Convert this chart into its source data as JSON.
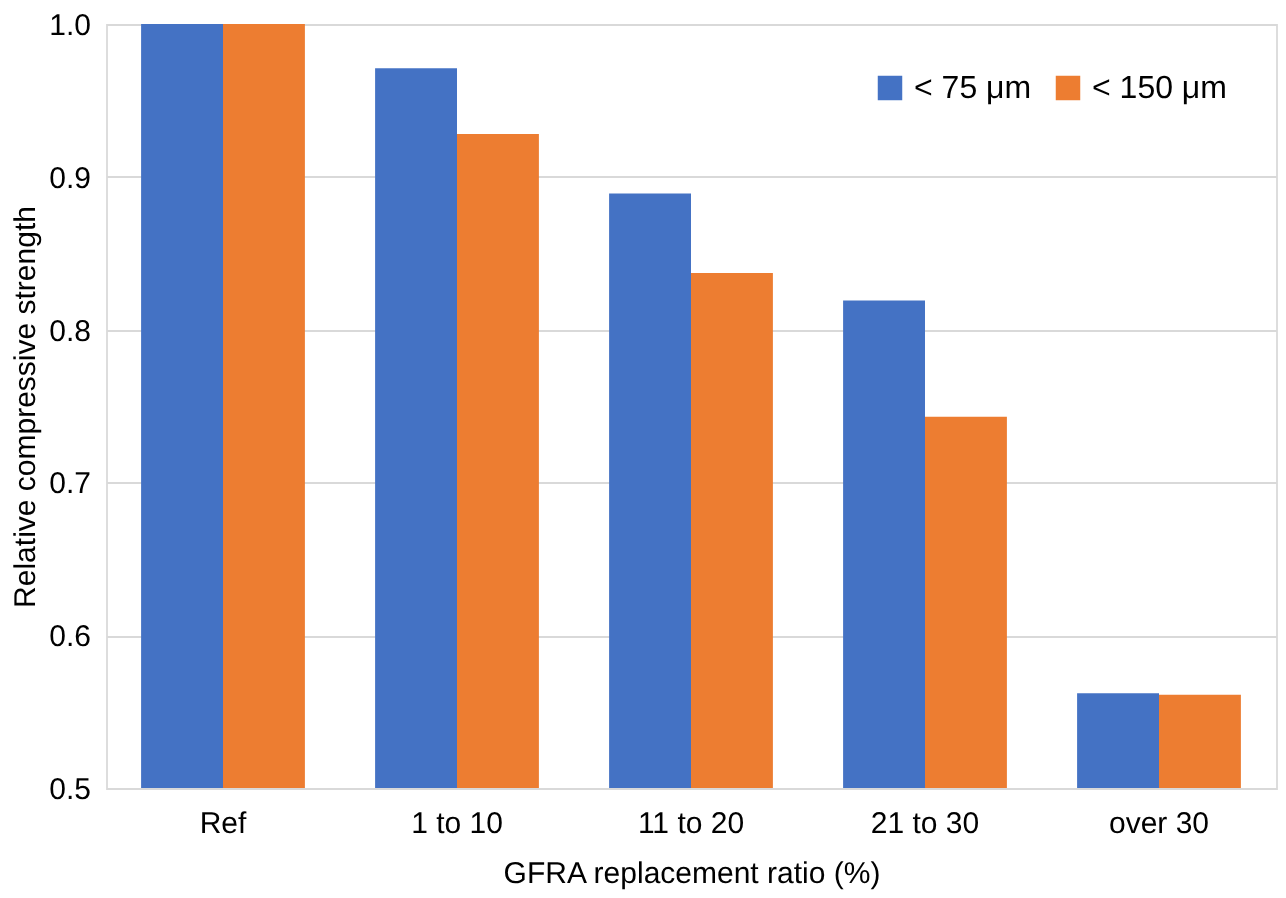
{
  "chart_data": {
    "type": "bar",
    "categories": [
      "Ref",
      "1 to 10",
      "11 to 20",
      "21 to 30",
      "over 30"
    ],
    "xlabel": "GFRA replacement ratio (%)",
    "ylabel": "Relative compressive strength",
    "series": [
      {
        "name": "< 75 μm",
        "color": "#4472c4",
        "values": [
          1.0,
          0.971,
          0.889,
          0.819,
          0.562
        ]
      },
      {
        "name": "< 150 μm",
        "color": "#ed7d31",
        "values": [
          1.0,
          0.928,
          0.837,
          0.743,
          0.561
        ]
      }
    ],
    "ylim": [
      0.5,
      1.0
    ],
    "yticks": [
      0.5,
      0.6,
      0.7,
      0.8,
      0.9,
      {
        "value": 1.0,
        "label": "1.0"
      }
    ],
    "grid": "y",
    "legend": "top right"
  }
}
